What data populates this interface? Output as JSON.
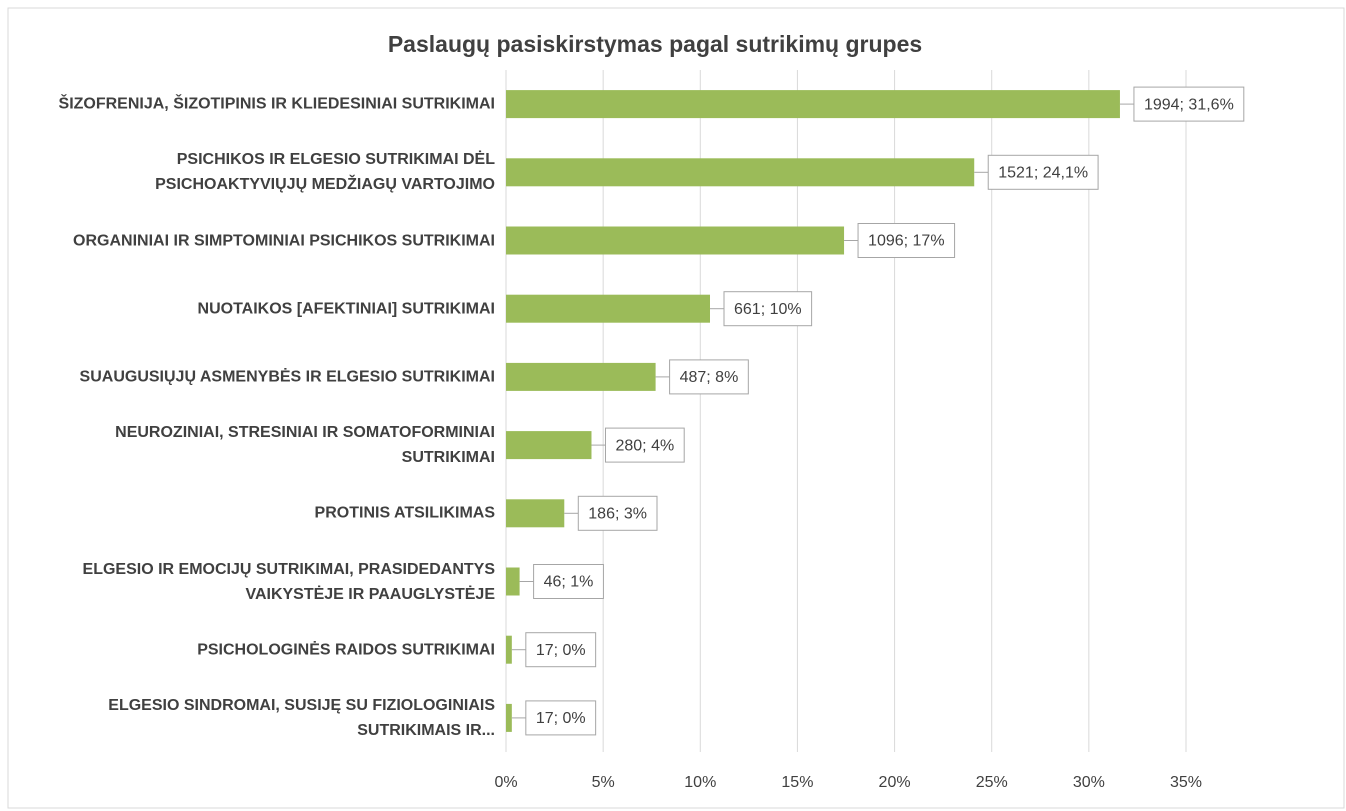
{
  "chart_data": {
    "type": "bar",
    "orientation": "horizontal",
    "title": "Paslaugų pasiskirstymas pagal sutrikimų grupes",
    "categories": [
      "ŠIZOFRENIJA, ŠIZOTIPINIS IR KLIEDESINIAI SUTRIKIMAI",
      "PSICHIKOS IR ELGESIO SUTRIKIMAI DĖL PSICHOAKTYVIŲJŲ MEDŽIAGŲ VARTOJIMO",
      "ORGANINIAI IR SIMPTOMINIAI PSICHIKOS SUTRIKIMAI",
      "NUOTAIKOS [AFEKTINIAI] SUTRIKIMAI",
      "SUAUGUSIŲJŲ ASMENYBĖS IR ELGESIO SUTRIKIMAI",
      "NEUROZINIAI, STRESINIAI IR SOMATOFORMINIAI SUTRIKIMAI",
      "PROTINIS ATSILIKIMAS",
      "ELGESIO IR EMOCIJŲ SUTRIKIMAI, PRASIDEDANTYS VAIKYSTĖJE IR PAAUGLYSTĖJE",
      "PSICHOLOGINĖS RAIDOS SUTRIKIMAI",
      "ELGESIO SINDROMAI, SUSIJĘ SU FIZIOLOGINIAIS SUTRIKIMAIS IR..."
    ],
    "values": [
      31.6,
      24.1,
      17.4,
      10.5,
      7.7,
      4.4,
      3.0,
      0.7,
      0.3,
      0.3
    ],
    "value_labels": [
      "1994; 31,6%",
      "1521; 24,1%",
      "1096; 17%",
      "661; 10%",
      "487; 8%",
      "280; 4%",
      "186; 3%",
      "46; 1%",
      "17; 0%",
      "17; 0%"
    ],
    "color": "#9bbb59",
    "xlim": [
      0,
      35
    ],
    "xticks": [
      {
        "value": 0,
        "label": "0%"
      },
      {
        "value": 5,
        "label": "5%"
      },
      {
        "value": 10,
        "label": "10%"
      },
      {
        "value": 15,
        "label": "15%"
      },
      {
        "value": 20,
        "label": "20%"
      },
      {
        "value": 25,
        "label": "25%"
      },
      {
        "value": 30,
        "label": "30%"
      },
      {
        "value": 35,
        "label": "35%"
      }
    ],
    "grid": true
  }
}
